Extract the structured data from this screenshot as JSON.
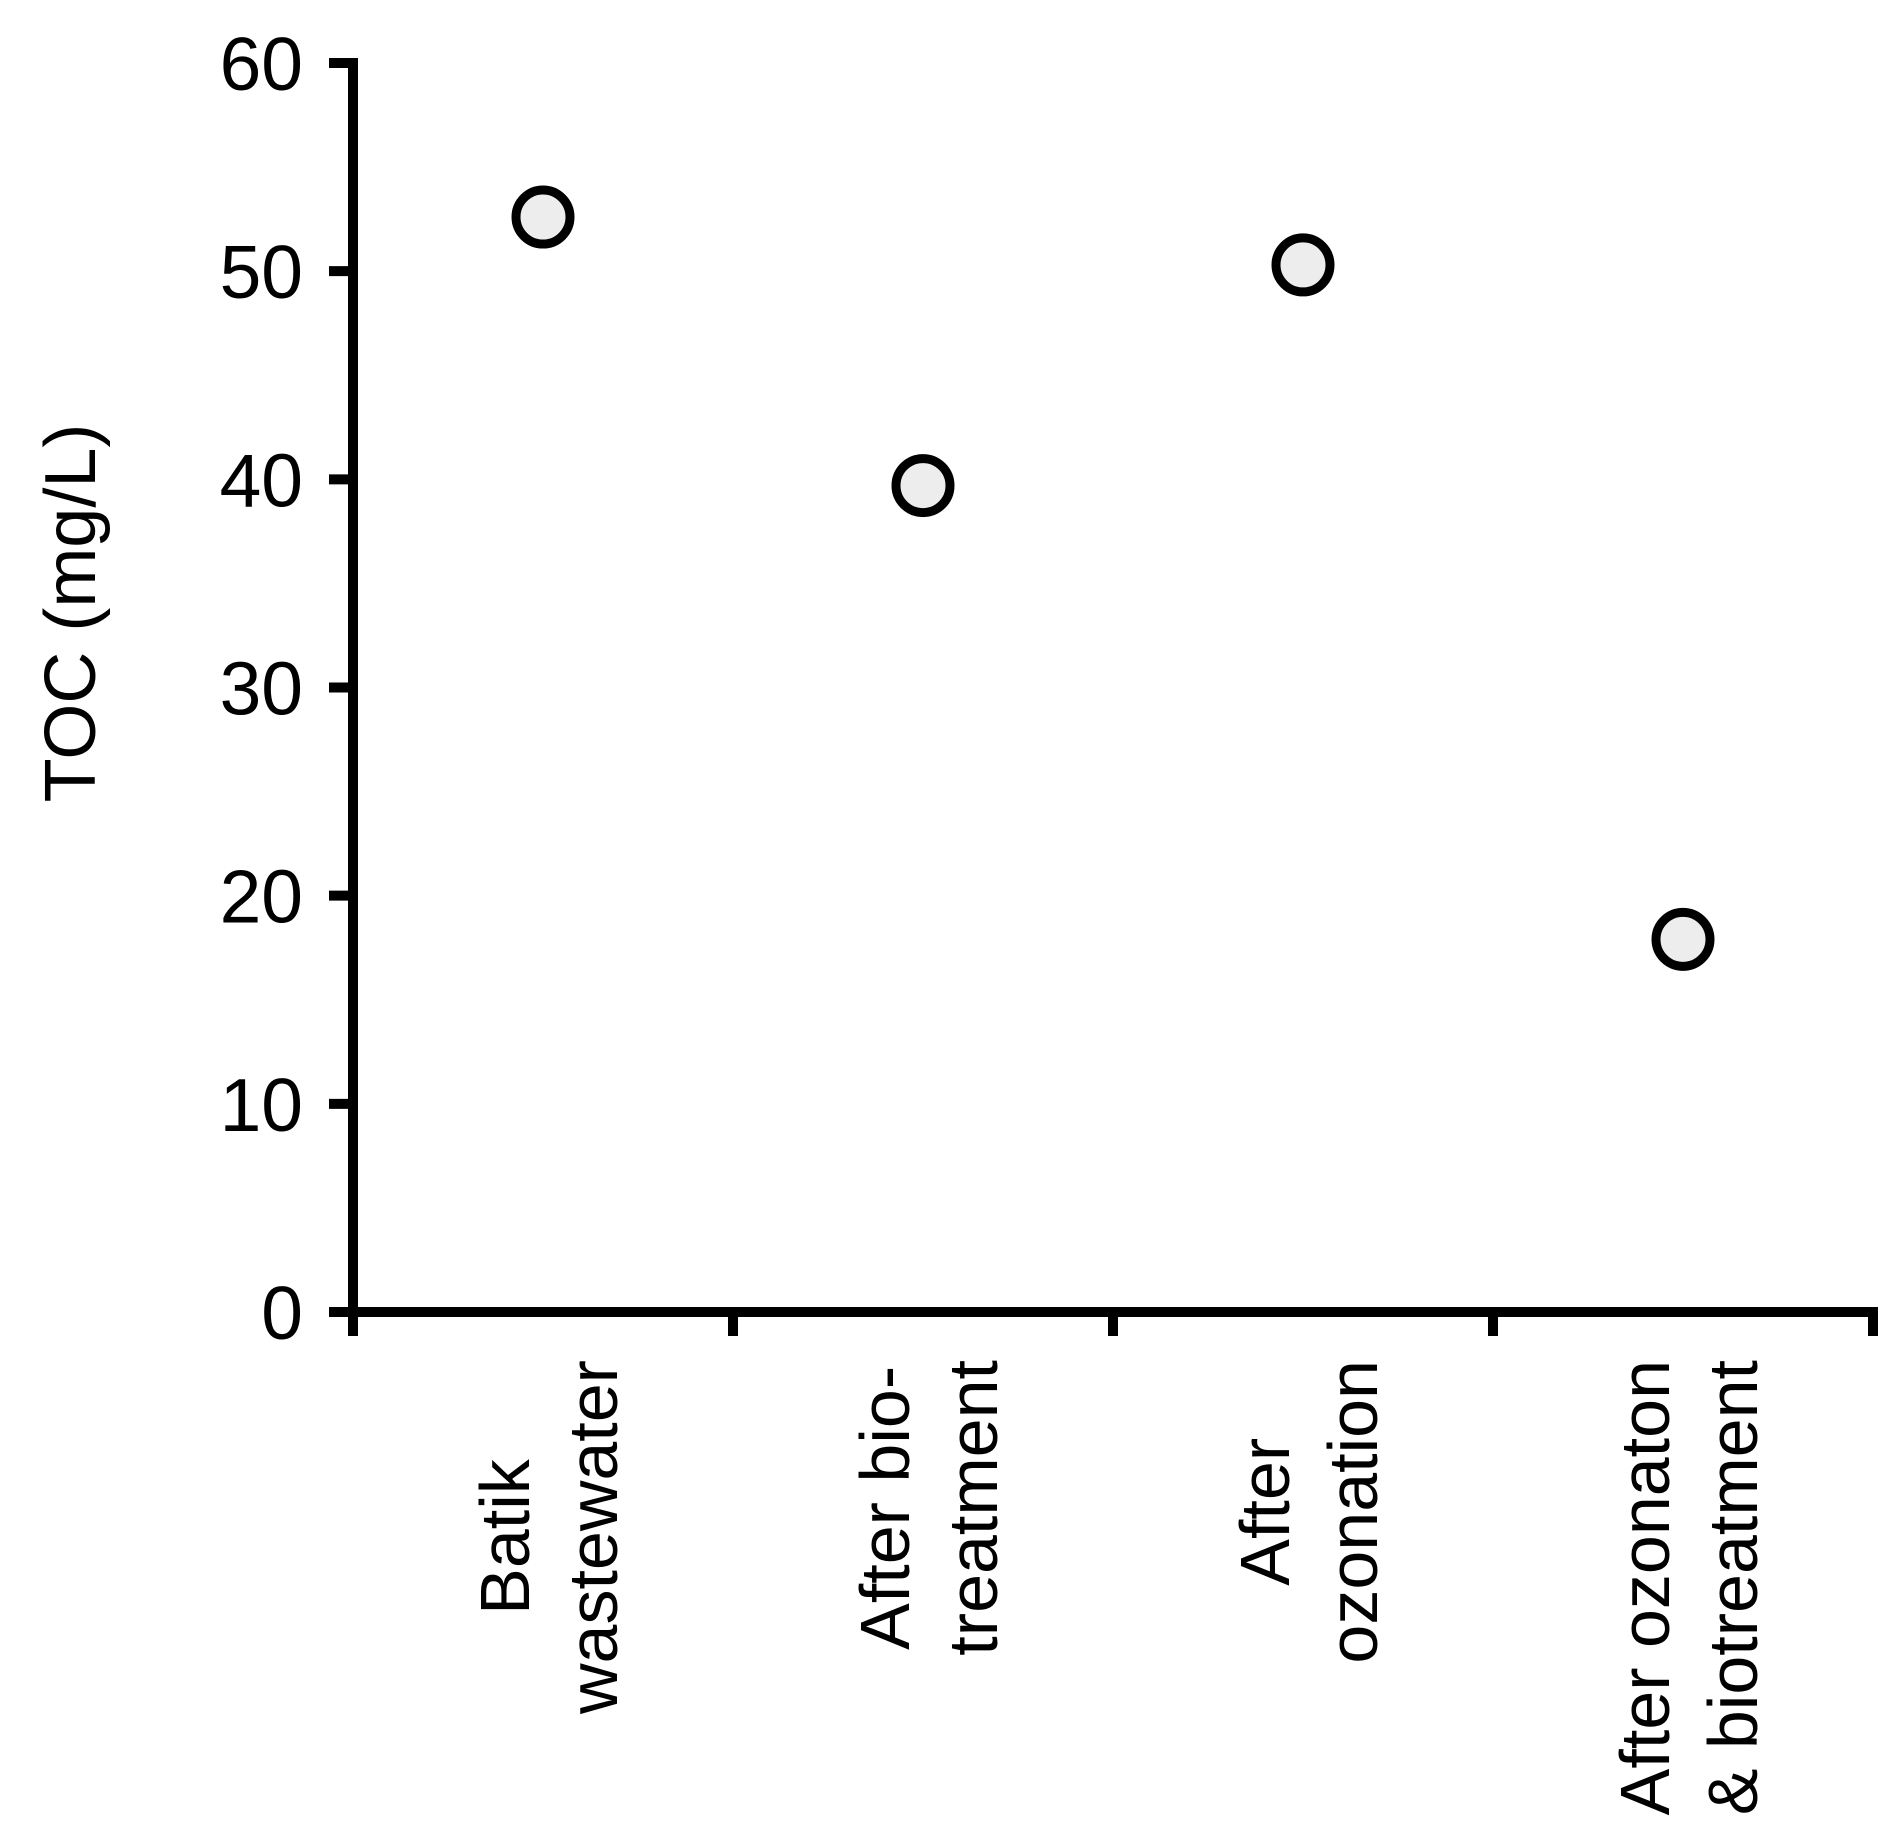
{
  "chart_data": {
    "type": "scatter",
    "title": "",
    "xlabel": "",
    "ylabel": "TOC (mg/L)",
    "ylim": [
      0,
      60
    ],
    "yticks": [
      0,
      10,
      20,
      30,
      40,
      50,
      60
    ],
    "ytick_labels": [
      "0",
      "10",
      "20",
      "30",
      "40",
      "50",
      "60"
    ],
    "categories": [
      "Batik wastewater",
      "After bio-treatment",
      "After ozonation",
      "After ozonaton & biotreatment"
    ],
    "category_label_lines": [
      [
        "Batik",
        "wastewater"
      ],
      [
        "After bio-",
        "treatment"
      ],
      [
        "After",
        "ozonation"
      ],
      [
        "After ozonaton",
        "& biotreatment"
      ]
    ],
    "series": [
      {
        "name": "TOC",
        "values": [
          52.6,
          39.7,
          50.3,
          17.9
        ]
      }
    ],
    "grid": false,
    "legend": null,
    "marker": {
      "shape": "circle",
      "fill": "#ededed",
      "stroke": "#000000"
    },
    "axis_color": "#000000",
    "background_color": "#ffffff"
  }
}
